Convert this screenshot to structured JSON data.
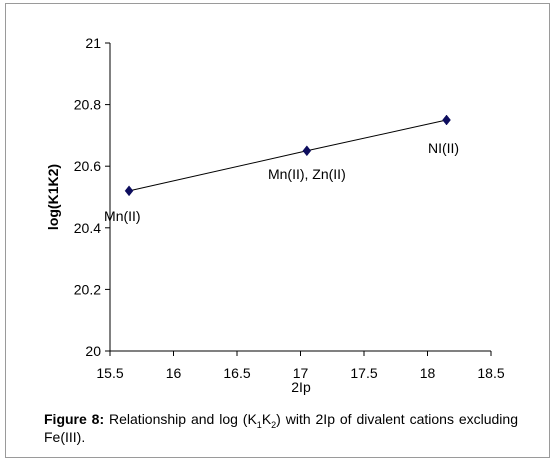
{
  "chart_data": {
    "type": "scatter",
    "xlabel": "2Ip",
    "ylabel": "log(K1K2)",
    "xlim": [
      15.5,
      18.5
    ],
    "ylim": [
      20,
      21
    ],
    "xticks": [
      "15.5",
      "16",
      "16.5",
      "17",
      "17.5",
      "18",
      "18.5"
    ],
    "yticks": [
      "20",
      "20.2",
      "20.4",
      "20.6",
      "20.8",
      "21"
    ],
    "grid": false,
    "marker_color": "#0d0d5e",
    "points": [
      {
        "x": 15.65,
        "y": 20.52,
        "label": "Mn(II)"
      },
      {
        "x": 17.05,
        "y": 20.65,
        "label": "Mn(II), Zn(II)"
      },
      {
        "x": 18.15,
        "y": 20.75,
        "label": "NI(II)"
      }
    ]
  },
  "caption": {
    "prefix": "Figure 8:",
    "text_a": " Relationship and log (K",
    "sub1": "1",
    "text_b": "K",
    "sub2": "2",
    "text_c": ") with 2Ip of divalent cations excluding Fe(III)."
  }
}
